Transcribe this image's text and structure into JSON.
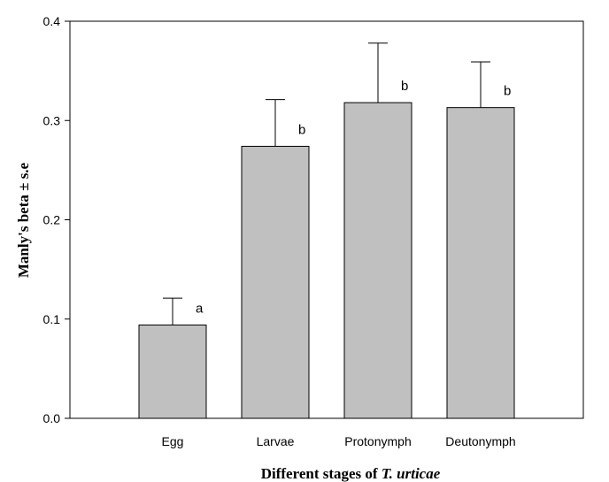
{
  "chart_data": {
    "type": "bar",
    "title": "",
    "xlabel": {
      "prefix": "Different stages of ",
      "species": "T. urticae"
    },
    "ylabel": "Manly's beta ± s.e",
    "ylim": [
      0,
      0.4
    ],
    "yticks": [
      "0.0",
      "0.1",
      "0.2",
      "0.3",
      "0.4"
    ],
    "categories": [
      "Egg",
      "Larvae",
      "Protonymph",
      "Deutonymph"
    ],
    "values": [
      0.094,
      0.274,
      0.318,
      0.313
    ],
    "errors": [
      0.027,
      0.047,
      0.06,
      0.046
    ],
    "significance_letters": [
      "a",
      "b",
      "b",
      "b"
    ],
    "grid": false,
    "colors": {
      "bar_fill": "#c0c0c0",
      "bar_stroke": "#000000",
      "axis": "#000000"
    }
  }
}
